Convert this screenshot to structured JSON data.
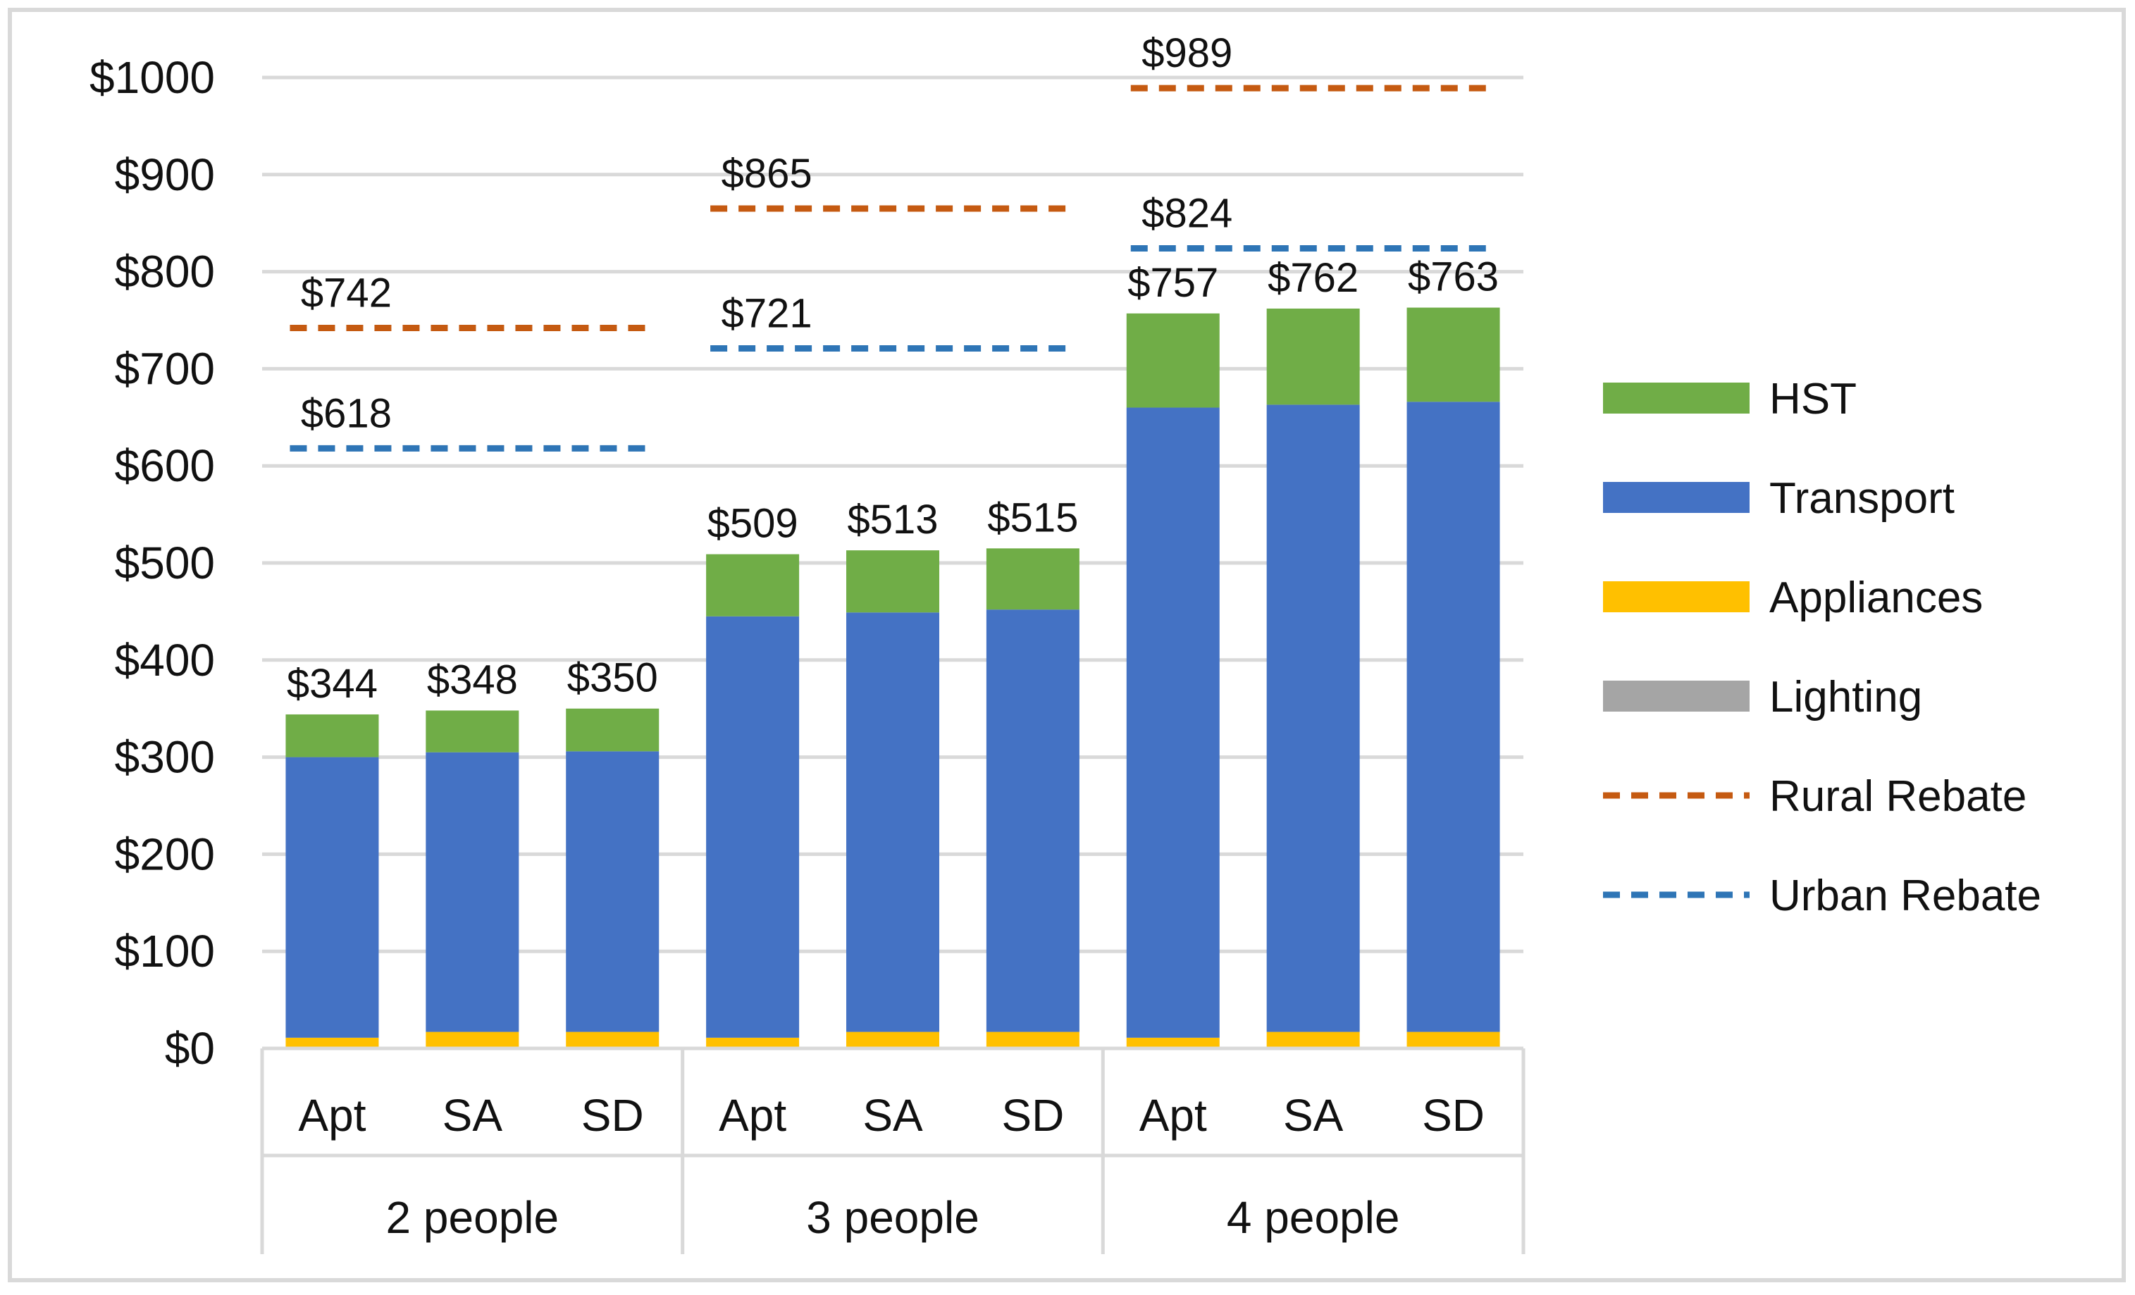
{
  "chart_data": {
    "type": "bar",
    "stacked": true,
    "title": "",
    "xlabel": "",
    "ylabel": "",
    "ylim": [
      0,
      1000
    ],
    "y_ticks": [
      0,
      100,
      200,
      300,
      400,
      500,
      600,
      700,
      800,
      900,
      1000
    ],
    "y_tick_labels": [
      "$0",
      "$100",
      "$200",
      "$300",
      "$400",
      "$500",
      "$600",
      "$700",
      "$800",
      "$900",
      "$1000"
    ],
    "grid": true,
    "legend_position": "right",
    "categories": [
      "Apt",
      "SA",
      "SD",
      "Apt",
      "SA",
      "SD",
      "Apt",
      "SA",
      "SD"
    ],
    "groups": [
      {
        "label": "2 people",
        "categories": [
          "Apt",
          "SA",
          "SD"
        ]
      },
      {
        "label": "3 people",
        "categories": [
          "Apt",
          "SA",
          "SD"
        ]
      },
      {
        "label": "4 people",
        "categories": [
          "Apt",
          "SA",
          "SD"
        ]
      }
    ],
    "series": [
      {
        "name": "Lighting",
        "color": "#a5a5a5",
        "values": [
          1,
          1,
          1,
          1,
          1,
          1,
          1,
          1,
          1
        ]
      },
      {
        "name": "Appliances",
        "color": "#ffc000",
        "values": [
          10,
          16,
          16,
          10,
          16,
          16,
          10,
          16,
          16
        ]
      },
      {
        "name": "Transport",
        "color": "#4472c4",
        "values": [
          289,
          288,
          289,
          434,
          432,
          435,
          649,
          646,
          649
        ]
      },
      {
        "name": "HST",
        "color": "#70ad47",
        "values": [
          44,
          43,
          44,
          64,
          64,
          63,
          97,
          99,
          97
        ]
      }
    ],
    "totals": [
      344,
      348,
      350,
      509,
      513,
      515,
      757,
      762,
      763
    ],
    "total_labels": [
      "$344",
      "$348",
      "$350",
      "$509",
      "$513",
      "$515",
      "$757",
      "$762",
      "$763"
    ],
    "rebates": [
      {
        "name": "Rural Rebate",
        "color": "#c55a11",
        "values": [
          742,
          865,
          989
        ],
        "labels": [
          "$742",
          "$865",
          "$989"
        ]
      },
      {
        "name": "Urban Rebate",
        "color": "#2e75b6",
        "values": [
          618,
          721,
          824
        ],
        "labels": [
          "$618",
          "$721",
          "$824"
        ]
      }
    ],
    "legend": [
      {
        "name": "HST",
        "kind": "bar",
        "color": "#70ad47"
      },
      {
        "name": "Transport",
        "kind": "bar",
        "color": "#4472c4"
      },
      {
        "name": "Appliances",
        "kind": "bar",
        "color": "#ffc000"
      },
      {
        "name": "Lighting",
        "kind": "bar",
        "color": "#a5a5a5"
      },
      {
        "name": "Rural Rebate",
        "kind": "dashed-line",
        "color": "#c55a11"
      },
      {
        "name": "Urban Rebate",
        "kind": "dashed-line",
        "color": "#2e75b6"
      }
    ]
  }
}
